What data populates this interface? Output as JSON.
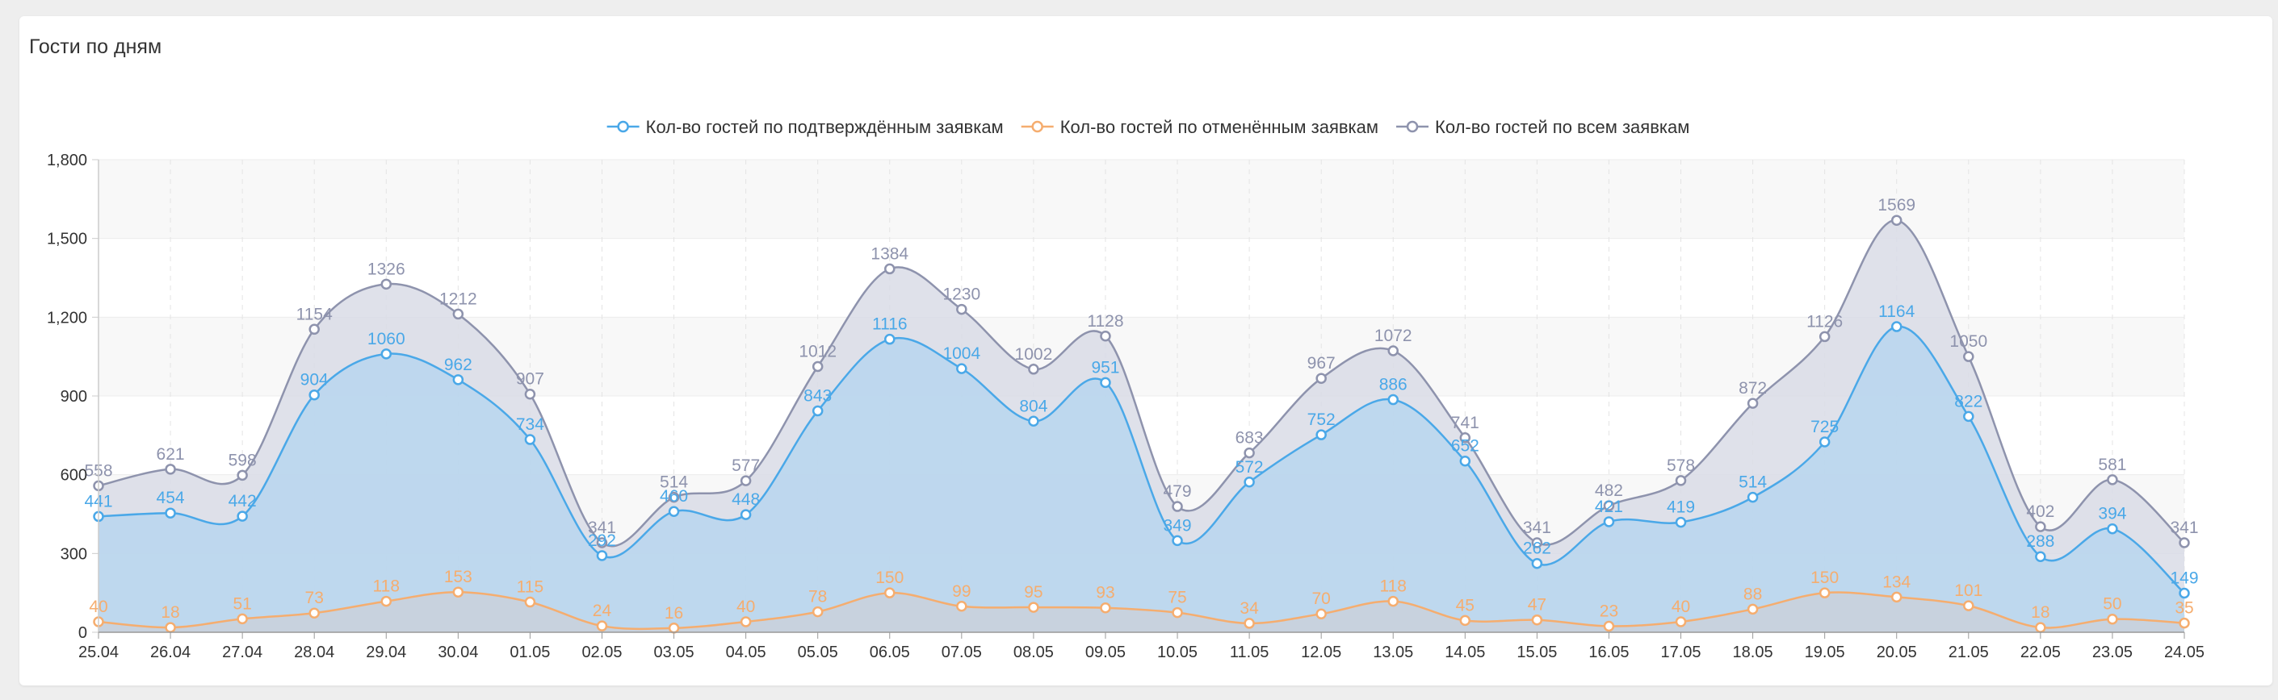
{
  "title": "Гости по дням",
  "colors": {
    "confirmed": "#4aa8e8",
    "cancelled": "#f5ad6f",
    "total": "#8e93ad",
    "grid": "#ececec",
    "axis": "#cccccc"
  },
  "chart_data": {
    "type": "area",
    "categories": [
      "25.04",
      "26.04",
      "27.04",
      "28.04",
      "29.04",
      "30.04",
      "01.05",
      "02.05",
      "03.05",
      "04.05",
      "05.05",
      "06.05",
      "07.05",
      "08.05",
      "09.05",
      "10.05",
      "11.05",
      "12.05",
      "13.05",
      "14.05",
      "15.05",
      "16.05",
      "17.05",
      "18.05",
      "19.05",
      "20.05",
      "21.05",
      "22.05",
      "23.05",
      "24.05"
    ],
    "yticks": [
      "0",
      "300",
      "600",
      "900",
      "1,200",
      "1,500",
      "1,800"
    ],
    "ylim": [
      0,
      1800
    ],
    "grid": true,
    "legend_position": "top-center",
    "series": [
      {
        "key": "total",
        "name": "Кол-во гостей по всем заявкам",
        "values": [
          558,
          621,
          598,
          1154,
          1326,
          1212,
          907,
          341,
          514,
          577,
          1012,
          1384,
          1230,
          1002,
          1128,
          479,
          683,
          967,
          1072,
          741,
          341,
          482,
          578,
          872,
          1126,
          1569,
          1050,
          402,
          581,
          341
        ]
      },
      {
        "key": "confirmed",
        "name": "Кол-во гостей по подтверждённым заявкам",
        "values": [
          441,
          454,
          442,
          904,
          1060,
          962,
          734,
          292,
          460,
          448,
          843,
          1116,
          1004,
          804,
          951,
          349,
          572,
          752,
          886,
          652,
          262,
          421,
          419,
          514,
          725,
          1164,
          822,
          288,
          394,
          149
        ]
      },
      {
        "key": "cancelled",
        "name": "Кол-во гостей по отменённым заявкам",
        "values": [
          40,
          18,
          51,
          73,
          118,
          153,
          115,
          24,
          16,
          40,
          78,
          150,
          99,
          95,
          93,
          75,
          34,
          70,
          118,
          45,
          47,
          23,
          40,
          88,
          150,
          134,
          101,
          18,
          50,
          35
        ]
      }
    ],
    "legend_order": [
      "confirmed",
      "cancelled",
      "total"
    ]
  }
}
